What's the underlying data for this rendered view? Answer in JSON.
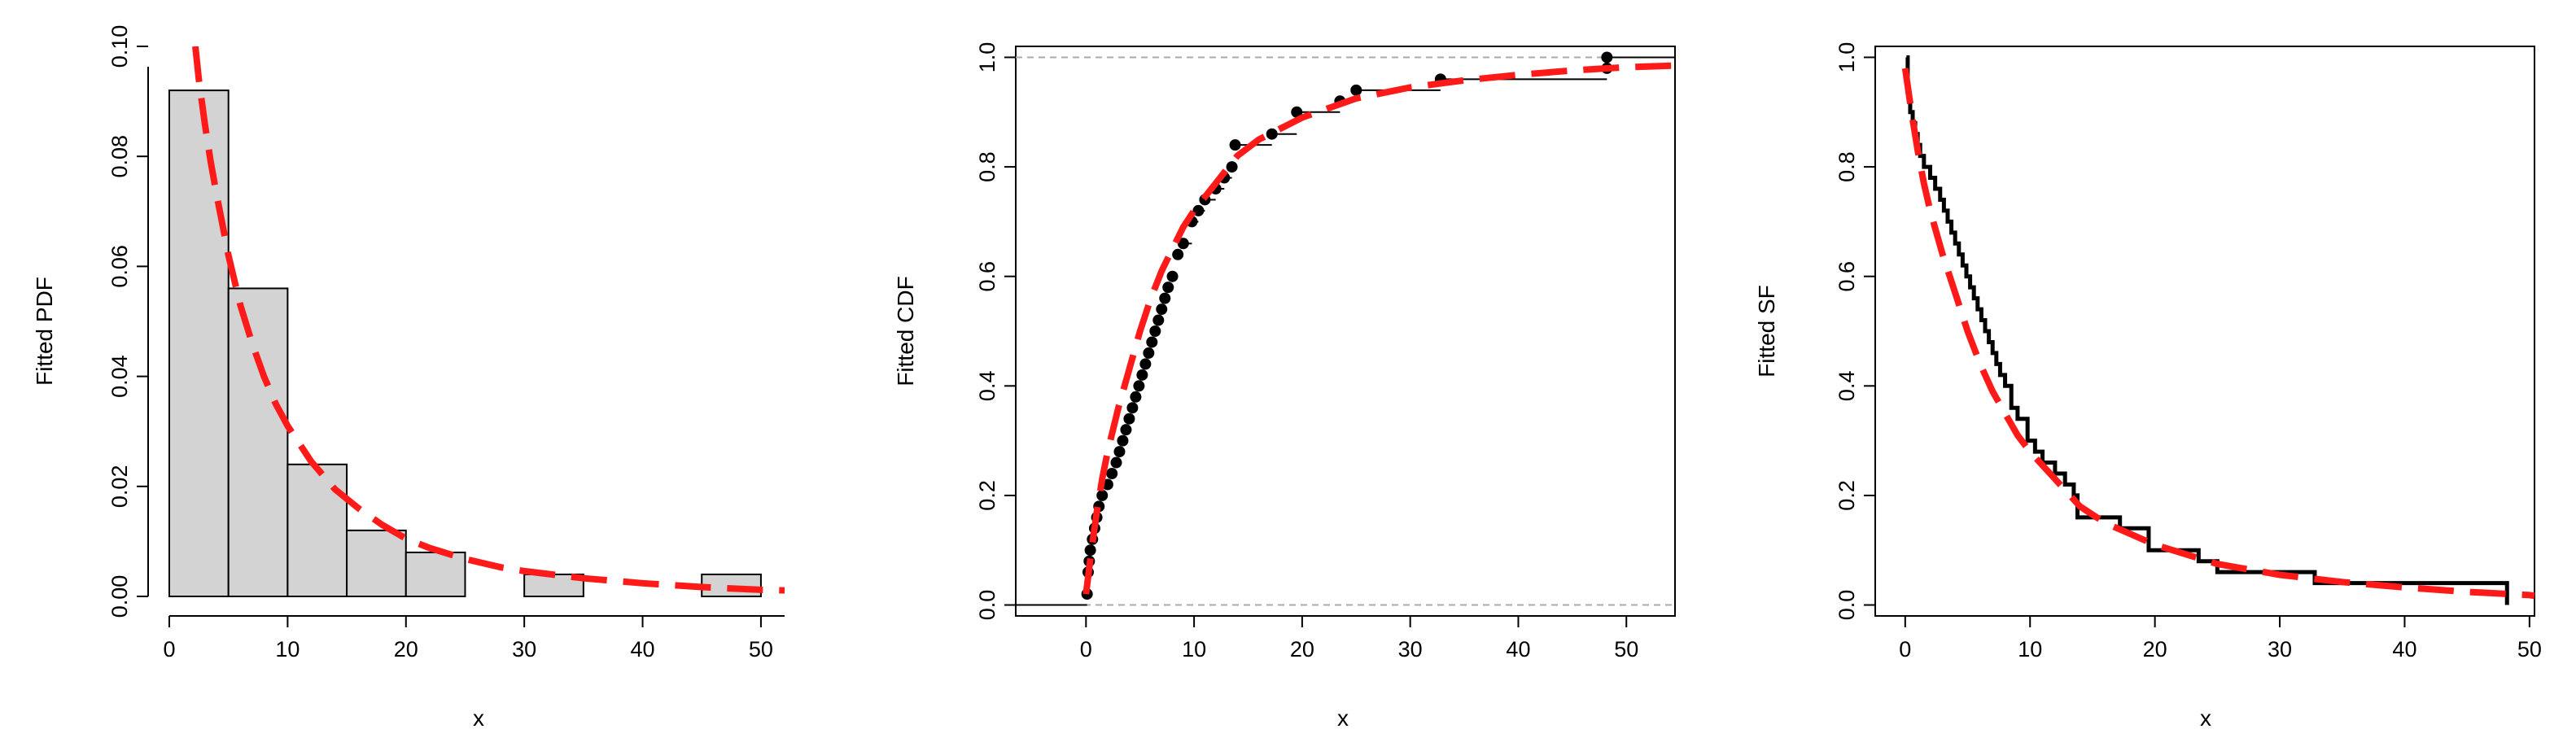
{
  "colors": {
    "fit": "#ff1a1a",
    "bar_fill": "#d3d3d3",
    "axis": "#000000",
    "reference": "#aaaaaa"
  },
  "chart_data": [
    {
      "type": "bar",
      "name": "histogram-pdf",
      "xlabel": "x",
      "ylabel": "Fitted PDF",
      "xlim": [
        0,
        52
      ],
      "ylim": [
        0,
        0.1
      ],
      "xticks": [
        0,
        10,
        20,
        30,
        40,
        50
      ],
      "yticks": [
        0.0,
        0.02,
        0.04,
        0.06,
        0.08,
        0.1
      ],
      "ytick_labels": [
        "0.00",
        "0.02",
        "0.04",
        "0.06",
        "0.08",
        "0.10"
      ],
      "bins": [
        {
          "from": 0,
          "to": 5,
          "density": 0.092
        },
        {
          "from": 5,
          "to": 10,
          "density": 0.056
        },
        {
          "from": 10,
          "to": 15,
          "density": 0.024
        },
        {
          "from": 15,
          "to": 20,
          "density": 0.012
        },
        {
          "from": 20,
          "to": 25,
          "density": 0.008
        },
        {
          "from": 25,
          "to": 30,
          "density": 0.0
        },
        {
          "from": 30,
          "to": 35,
          "density": 0.004
        },
        {
          "from": 35,
          "to": 40,
          "density": 0.0
        },
        {
          "from": 40,
          "to": 45,
          "density": 0.0
        },
        {
          "from": 45,
          "to": 50,
          "density": 0.004
        }
      ],
      "fitted_curve": {
        "style": "dashed",
        "x": [
          2.2,
          2.5,
          3,
          3.5,
          4,
          5,
          6,
          7,
          8,
          9,
          10,
          12,
          14,
          16,
          18,
          20,
          22,
          25,
          28,
          30,
          35,
          40,
          45,
          50,
          52
        ],
        "y": [
          0.1,
          0.094,
          0.086,
          0.079,
          0.073,
          0.062,
          0.053,
          0.046,
          0.04,
          0.035,
          0.031,
          0.0245,
          0.0195,
          0.016,
          0.013,
          0.0105,
          0.0088,
          0.0068,
          0.0053,
          0.0046,
          0.0033,
          0.0024,
          0.0017,
          0.0012,
          0.0011
        ]
      }
    },
    {
      "type": "line",
      "name": "empirical-cdf",
      "xlabel": "x",
      "ylabel": "Fitted CDF",
      "xlim": [
        -6.5,
        54.5
      ],
      "ylim": [
        -0.02,
        1.02
      ],
      "xticks": [
        0,
        10,
        20,
        30,
        40,
        50
      ],
      "yticks": [
        0.0,
        0.2,
        0.4,
        0.6,
        0.8,
        1.0
      ],
      "ytick_labels": [
        "0.0",
        "0.2",
        "0.4",
        "0.6",
        "0.8",
        "1.0"
      ],
      "reference_lines": [
        0,
        1
      ],
      "points": {
        "x": [
          0.1,
          0.2,
          0.3,
          0.4,
          0.6,
          0.8,
          1.0,
          1.2,
          1.5,
          2.0,
          2.4,
          2.8,
          3.1,
          3.4,
          3.7,
          4.0,
          4.3,
          4.6,
          4.9,
          5.2,
          5.5,
          5.8,
          6.1,
          6.4,
          6.7,
          7.0,
          7.3,
          7.6,
          8.0,
          8.5,
          9.0,
          9.8,
          10.4,
          11.0,
          12.0,
          12.8,
          13.5,
          13.8,
          17.2,
          19.5,
          23.5,
          25.0,
          32.8,
          48.2
        ],
        "y": [
          0.02,
          0.06,
          0.08,
          0.1,
          0.12,
          0.14,
          0.16,
          0.18,
          0.2,
          0.22,
          0.24,
          0.26,
          0.28,
          0.3,
          0.32,
          0.34,
          0.36,
          0.38,
          0.4,
          0.42,
          0.44,
          0.46,
          0.48,
          0.5,
          0.52,
          0.54,
          0.56,
          0.58,
          0.6,
          0.64,
          0.66,
          0.7,
          0.72,
          0.74,
          0.76,
          0.78,
          0.8,
          0.84,
          0.86,
          0.9,
          0.92,
          0.94,
          0.96,
          0.98
        ]
      },
      "top_points": {
        "x": [
          48.2
        ],
        "y": [
          1.0
        ]
      },
      "fitted_curve": {
        "style": "dashed",
        "x": [
          0,
          0.5,
          1,
          1.5,
          2,
          3,
          4,
          5,
          6,
          7,
          8,
          9,
          10,
          12,
          14,
          16,
          18,
          20,
          25,
          30,
          35,
          40,
          45,
          50,
          54.5
        ],
        "y": [
          0.02,
          0.1,
          0.17,
          0.23,
          0.28,
          0.36,
          0.43,
          0.5,
          0.56,
          0.61,
          0.65,
          0.69,
          0.72,
          0.77,
          0.82,
          0.85,
          0.87,
          0.89,
          0.925,
          0.945,
          0.958,
          0.968,
          0.976,
          0.982,
          0.985
        ]
      }
    },
    {
      "type": "line",
      "name": "empirical-sf",
      "xlabel": "x",
      "ylabel": "Fitted SF",
      "xlim": [
        -2.4,
        50.4
      ],
      "ylim": [
        -0.02,
        1.02
      ],
      "xticks": [
        0,
        10,
        20,
        30,
        40,
        50
      ],
      "yticks": [
        0.0,
        0.2,
        0.4,
        0.6,
        0.8,
        1.0
      ],
      "ytick_labels": [
        "0.0",
        "0.2",
        "0.4",
        "0.6",
        "0.8",
        "1.0"
      ],
      "steps": {
        "x": [
          0.1,
          0.2,
          0.3,
          0.4,
          0.6,
          0.8,
          1.0,
          1.2,
          1.5,
          2.0,
          2.4,
          2.8,
          3.1,
          3.4,
          3.7,
          4.0,
          4.3,
          4.6,
          4.9,
          5.2,
          5.5,
          5.8,
          6.1,
          6.4,
          6.7,
          7.0,
          7.3,
          7.6,
          8.0,
          8.5,
          9.0,
          9.8,
          10.4,
          11.0,
          12.0,
          12.8,
          13.5,
          13.8,
          17.2,
          19.5,
          23.5,
          25.0,
          32.8,
          48.2
        ],
        "y": [
          1.0,
          0.94,
          0.92,
          0.9,
          0.88,
          0.86,
          0.84,
          0.82,
          0.8,
          0.78,
          0.76,
          0.74,
          0.72,
          0.7,
          0.68,
          0.66,
          0.64,
          0.62,
          0.6,
          0.58,
          0.56,
          0.54,
          0.52,
          0.5,
          0.48,
          0.46,
          0.44,
          0.42,
          0.4,
          0.36,
          0.34,
          0.3,
          0.28,
          0.26,
          0.24,
          0.22,
          0.2,
          0.16,
          0.14,
          0.1,
          0.08,
          0.06,
          0.04,
          0.02
        ]
      },
      "fitted_curve": {
        "style": "dashed",
        "x": [
          0,
          0.5,
          1,
          1.5,
          2,
          3,
          4,
          5,
          6,
          7,
          8,
          9,
          10,
          12,
          14,
          16,
          18,
          20,
          25,
          30,
          35,
          40,
          45,
          50,
          50.4
        ],
        "y": [
          0.98,
          0.9,
          0.83,
          0.77,
          0.72,
          0.64,
          0.57,
          0.5,
          0.44,
          0.39,
          0.35,
          0.31,
          0.28,
          0.23,
          0.18,
          0.15,
          0.13,
          0.11,
          0.075,
          0.055,
          0.042,
          0.032,
          0.024,
          0.018,
          0.017
        ]
      }
    }
  ]
}
